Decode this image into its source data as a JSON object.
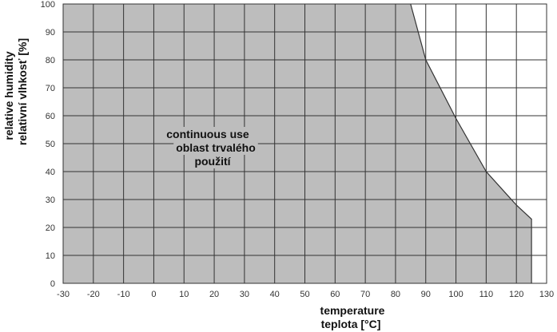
{
  "chart_data": {
    "type": "area",
    "title": "",
    "xlabel": [
      "temperature",
      "teplota [°C]"
    ],
    "ylabel": [
      "relative humidity",
      "relativní vlhkosť [%]"
    ],
    "xlim": [
      -30,
      130
    ],
    "ylim": [
      0,
      100
    ],
    "x_ticks": [
      -30,
      -20,
      -10,
      0,
      10,
      20,
      30,
      40,
      50,
      60,
      70,
      80,
      90,
      100,
      110,
      120,
      130
    ],
    "y_ticks": [
      0,
      10,
      20,
      30,
      40,
      50,
      60,
      70,
      80,
      90,
      100
    ],
    "grid": true,
    "series": [
      {
        "x": [
          -30,
          85,
          90,
          100,
          110,
          120,
          125,
          125
        ],
        "y": [
          100,
          100,
          80,
          59,
          40,
          28,
          23,
          0
        ]
      }
    ],
    "annotation": [
      "continuous use",
      "oblast trvalého",
      "použití"
    ],
    "colors": {
      "fill": "#bdbdbd",
      "edge": "#333333",
      "grid": "#333333",
      "background": "#ffffff"
    }
  }
}
